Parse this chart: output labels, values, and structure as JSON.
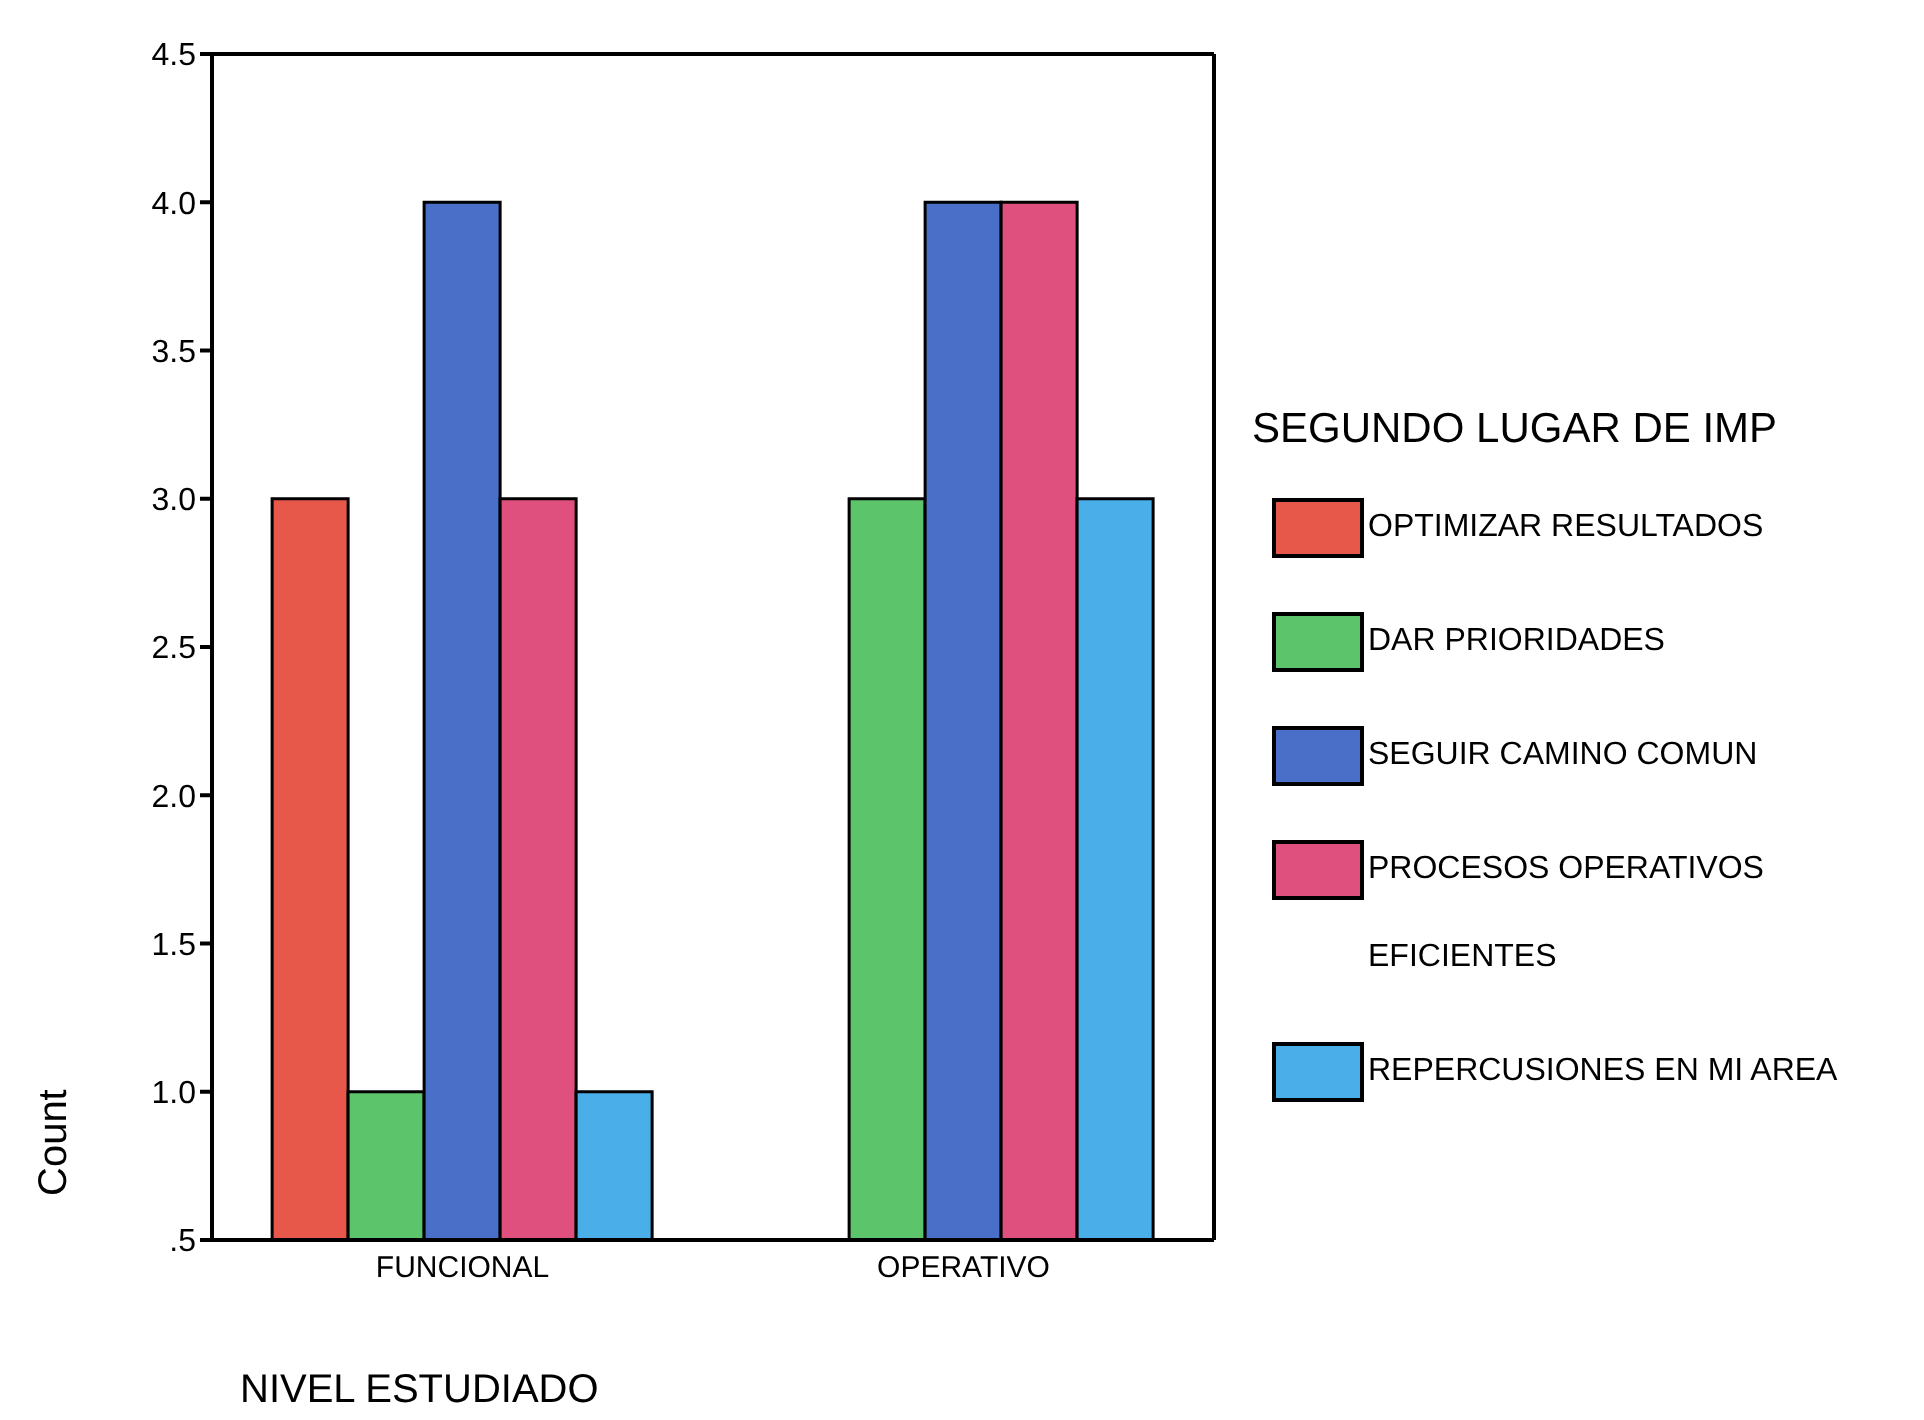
{
  "chart_data": {
    "type": "bar",
    "xlabel": "NIVEL ESTUDIADO",
    "ylabel": "Count",
    "legend_title": "SEGUNDO LUGAR DE IMP",
    "legend": "right",
    "categories": [
      "FUNCIONAL",
      "OPERATIVO"
    ],
    "series": [
      {
        "name": "OPTIMIZAR RESULTADOS",
        "color": "#e8584a",
        "values": [
          3,
          null
        ]
      },
      {
        "name": "DAR PRIORIDADES",
        "color": "#5cc46a",
        "values": [
          1,
          3
        ]
      },
      {
        "name": "SEGUIR CAMINO COMUN",
        "color": "#4a6fc8",
        "values": [
          4,
          4
        ]
      },
      {
        "name": "PROCESOS OPERATIVOS EFICIENTES",
        "color": "#e0507e",
        "values": [
          3,
          4
        ]
      },
      {
        "name": "REPERCUSIONES EN MI AREA",
        "color": "#4aaee8",
        "values": [
          1,
          3
        ]
      }
    ],
    "ylim": [
      0.5,
      4.5
    ],
    "yticks": [
      {
        "value": 0.5,
        "label": ".5"
      },
      {
        "value": 1,
        "label": "1.0"
      },
      {
        "value": 1.5,
        "label": "1.5"
      },
      {
        "value": 2,
        "label": "2.0"
      },
      {
        "value": 2.5,
        "label": "2.5"
      },
      {
        "value": 3,
        "label": "3.0"
      },
      {
        "value": 3.5,
        "label": "3.5"
      },
      {
        "value": 4,
        "label": "4.0"
      },
      {
        "value": 4.5,
        "label": "4.5"
      }
    ]
  }
}
